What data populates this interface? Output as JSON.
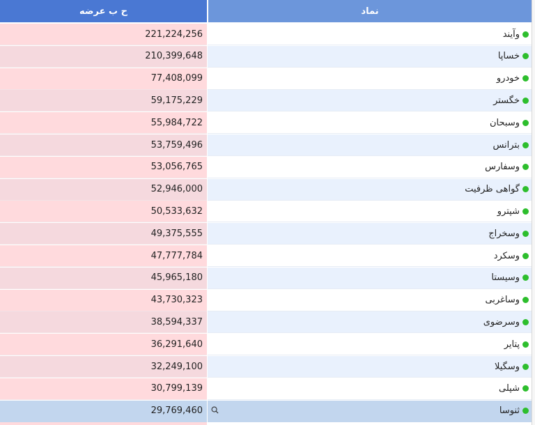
{
  "header": {
    "value_col": "ح ب عرضه",
    "name_col": "نماد"
  },
  "colors": {
    "header_left": "#4a78d3",
    "header_right": "#6c96db",
    "status_dot": "#2dbe2d",
    "value_bg": "#ffdadd",
    "selected_bg": "#c2d6ee"
  },
  "rows": [
    {
      "name": "وآیند",
      "value": "221,224,256"
    },
    {
      "name": "خساپا",
      "value": "210,399,648"
    },
    {
      "name": "خودرو",
      "value": "77,408,099"
    },
    {
      "name": "خگستر",
      "value": "59,175,229"
    },
    {
      "name": "وسبحان",
      "value": "55,984,722"
    },
    {
      "name": "بترانس",
      "value": "53,759,496"
    },
    {
      "name": "وسفارس",
      "value": "53,056,765"
    },
    {
      "name": "گواهی ظرفیت",
      "value": "52,946,000"
    },
    {
      "name": "شپترو",
      "value": "50,533,632"
    },
    {
      "name": "وسخراج",
      "value": "49,375,555"
    },
    {
      "name": "وسکرد",
      "value": "47,777,784"
    },
    {
      "name": "وسیستا",
      "value": "45,965,180"
    },
    {
      "name": "وساغربی",
      "value": "43,730,323"
    },
    {
      "name": "وسرضوی",
      "value": "38,594,337"
    },
    {
      "name": "پتایر",
      "value": "36,291,640"
    },
    {
      "name": "وسگیلا",
      "value": "32,249,100"
    },
    {
      "name": "شپلی",
      "value": "30,799,139"
    },
    {
      "name": "ثنوسا",
      "value": "29,769,460"
    }
  ],
  "selected_row": 17,
  "row_icon": "search-icon",
  "status_icon": "green-dot-icon"
}
